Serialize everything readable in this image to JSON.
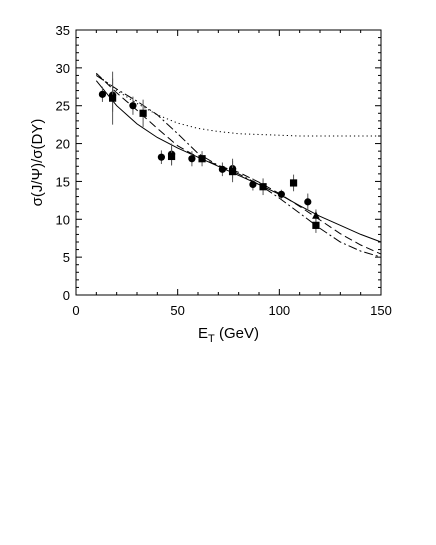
{
  "chart_data": {
    "type": "scatter",
    "title": "",
    "xlabel": "E_T (GeV)",
    "xlabel_main": "E",
    "xlabel_sub": "T",
    "xlabel_rest": " (GeV)",
    "ylabel": "σ(J/Ψ)/σ(DY)",
    "xlim": [
      0,
      150
    ],
    "ylim": [
      0,
      35
    ],
    "x_ticks": [
      0,
      50,
      100,
      150
    ],
    "y_ticks": [
      0,
      5,
      10,
      15,
      20,
      25,
      30,
      35
    ],
    "grid": false,
    "legend": "none",
    "series": [
      {
        "marker": "circle",
        "points": [
          {
            "x": 13,
            "y": 26.5,
            "err": 1.0
          },
          {
            "x": 18,
            "y": 26.4,
            "err": 2.2
          },
          {
            "x": 28,
            "y": 25.0,
            "err": 1.2
          },
          {
            "x": 42,
            "y": 18.2,
            "err": 0.9
          },
          {
            "x": 47,
            "y": 18.6,
            "err": 1.4
          },
          {
            "x": 57,
            "y": 18.0,
            "err": 1.0
          },
          {
            "x": 72,
            "y": 16.6,
            "err": 0.9
          },
          {
            "x": 77,
            "y": 16.7,
            "err": 1.3
          },
          {
            "x": 87,
            "y": 14.6,
            "err": 0.8
          },
          {
            "x": 101,
            "y": 13.3,
            "err": 0.6
          },
          {
            "x": 114,
            "y": 12.3,
            "err": 1.1
          }
        ]
      },
      {
        "marker": "square",
        "points": [
          {
            "x": 18,
            "y": 26.0,
            "err": 3.5
          },
          {
            "x": 33,
            "y": 24.0,
            "err": 1.8
          },
          {
            "x": 47,
            "y": 18.3,
            "err": 1.2
          },
          {
            "x": 62,
            "y": 18.0,
            "err": 1.0
          },
          {
            "x": 77,
            "y": 16.3,
            "err": 1.4
          },
          {
            "x": 92,
            "y": 14.3,
            "err": 1.1
          },
          {
            "x": 107,
            "y": 14.8,
            "err": 1.1
          },
          {
            "x": 118,
            "y": 9.2,
            "err": 1.0
          }
        ]
      },
      {
        "marker": "triangle",
        "points": [
          {
            "x": 118,
            "y": 10.5,
            "err": 0.8
          }
        ]
      }
    ],
    "curves": [
      {
        "style": "solid",
        "x": [
          10,
          20,
          30,
          40,
          50,
          60,
          70,
          80,
          90,
          100,
          110,
          120,
          130,
          140,
          150
        ],
        "y": [
          28.3,
          25.0,
          22.6,
          20.8,
          19.4,
          18.2,
          17.0,
          15.8,
          14.6,
          13.3,
          11.8,
          10.4,
          9.2,
          8.0,
          7.0
        ]
      },
      {
        "style": "dotted",
        "x": [
          10,
          20,
          30,
          40,
          50,
          60,
          70,
          80,
          90,
          100,
          110,
          120,
          130,
          140,
          150
        ],
        "y": [
          29.2,
          27.0,
          25.3,
          23.8,
          22.7,
          22.0,
          21.6,
          21.3,
          21.2,
          21.1,
          21.0,
          21.0,
          21.0,
          21.0,
          21.0
        ]
      },
      {
        "style": "dashed",
        "x": [
          10,
          20,
          30,
          40,
          50,
          60,
          70,
          80,
          90,
          100,
          110,
          120,
          130,
          140,
          150
        ],
        "y": [
          29.3,
          26.7,
          24.4,
          22.0,
          19.7,
          18.2,
          17.1,
          16.2,
          14.9,
          13.4,
          11.7,
          9.9,
          8.1,
          6.6,
          5.4
        ]
      },
      {
        "style": "dashdot",
        "x": [
          10,
          20,
          30,
          40,
          50,
          60,
          70,
          80,
          90,
          100,
          110,
          120,
          130,
          140,
          150
        ],
        "y": [
          29.0,
          27.2,
          25.6,
          23.8,
          21.3,
          18.7,
          17.1,
          16.0,
          14.6,
          12.8,
          10.8,
          8.8,
          7.0,
          5.8,
          5.0
        ]
      }
    ]
  }
}
